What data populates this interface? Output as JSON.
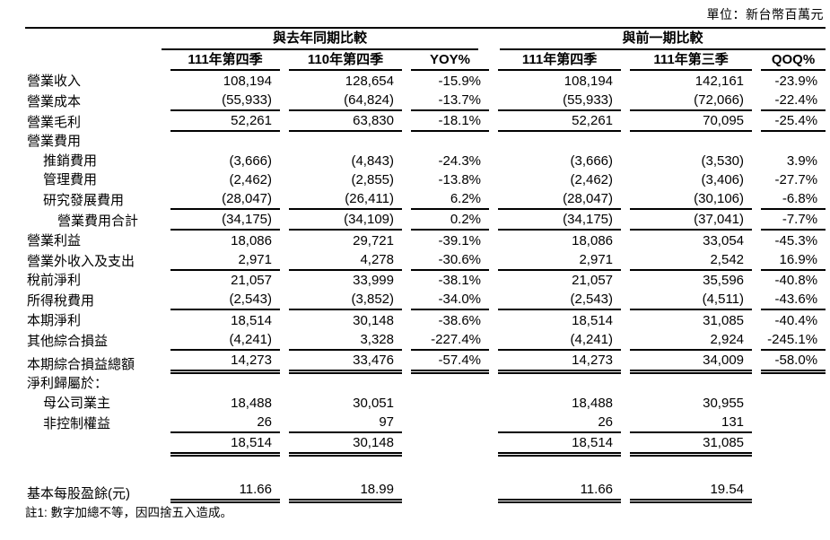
{
  "unit_label": "單位：新台幣百萬元",
  "table": {
    "groups": [
      {
        "label": "與去年同期比較"
      },
      {
        "label": "與前一期比較"
      }
    ],
    "columns": [
      "111年第四季",
      "110年第四季",
      "YOY%",
      "111年第四季",
      "111年第三季",
      "QOQ%"
    ],
    "rows": [
      {
        "label": "營業收入",
        "indent": 0,
        "rule": "none",
        "values": [
          "108,194",
          "128,654",
          "-15.9%",
          "108,194",
          "142,161",
          "-23.9%"
        ]
      },
      {
        "label": "營業成本",
        "indent": 0,
        "rule": "single",
        "values": [
          "(55,933)",
          "(64,824)",
          "-13.7%",
          "(55,933)",
          "(72,066)",
          "-22.4%"
        ]
      },
      {
        "label": "營業毛利",
        "indent": 0,
        "rule": "single",
        "values": [
          "52,261",
          "63,830",
          "-18.1%",
          "52,261",
          "70,095",
          "-25.4%"
        ]
      },
      {
        "label": "營業費用",
        "indent": 0,
        "rule": "none",
        "values": [
          "",
          "",
          "",
          "",
          "",
          ""
        ]
      },
      {
        "label": "推銷費用",
        "indent": 1,
        "rule": "none",
        "values": [
          "(3,666)",
          "(4,843)",
          "-24.3%",
          "(3,666)",
          "(3,530)",
          "3.9%"
        ]
      },
      {
        "label": "管理費用",
        "indent": 1,
        "rule": "none",
        "values": [
          "(2,462)",
          "(2,855)",
          "-13.8%",
          "(2,462)",
          "(3,406)",
          "-27.7%"
        ]
      },
      {
        "label": "研究發展費用",
        "indent": 1,
        "rule": "single",
        "values": [
          "(28,047)",
          "(26,411)",
          "6.2%",
          "(28,047)",
          "(30,106)",
          "-6.8%"
        ]
      },
      {
        "label": "營業費用合計",
        "indent": 2,
        "rule": "single",
        "values": [
          "(34,175)",
          "(34,109)",
          "0.2%",
          "(34,175)",
          "(37,041)",
          "-7.7%"
        ]
      },
      {
        "label": "營業利益",
        "indent": 0,
        "rule": "none",
        "values": [
          "18,086",
          "29,721",
          "-39.1%",
          "18,086",
          "33,054",
          "-45.3%"
        ]
      },
      {
        "label": "營業外收入及支出",
        "indent": 0,
        "rule": "single",
        "values": [
          "2,971",
          "4,278",
          "-30.6%",
          "2,971",
          "2,542",
          "16.9%"
        ]
      },
      {
        "label": "稅前淨利",
        "indent": 0,
        "rule": "none",
        "values": [
          "21,057",
          "33,999",
          "-38.1%",
          "21,057",
          "35,596",
          "-40.8%"
        ]
      },
      {
        "label": "所得稅費用",
        "indent": 0,
        "rule": "single",
        "values": [
          "(2,543)",
          "(3,852)",
          "-34.0%",
          "(2,543)",
          "(4,511)",
          "-43.6%"
        ]
      },
      {
        "label": "本期淨利",
        "indent": 0,
        "rule": "none",
        "values": [
          "18,514",
          "30,148",
          "-38.6%",
          "18,514",
          "31,085",
          "-40.4%"
        ]
      },
      {
        "label": "其他綜合損益",
        "indent": 0,
        "rule": "single",
        "values": [
          "(4,241)",
          "3,328",
          "-227.4%",
          "(4,241)",
          "2,924",
          "-245.1%"
        ]
      },
      {
        "label": "本期綜合損益總額",
        "indent": 0,
        "rule": "double",
        "values": [
          "14,273",
          "33,476",
          "-57.4%",
          "14,273",
          "34,009",
          "-58.0%"
        ]
      },
      {
        "label": "淨利歸屬於：",
        "indent": 0,
        "rule": "none",
        "values": [
          "",
          "",
          "",
          "",
          "",
          ""
        ]
      },
      {
        "label": "母公司業主",
        "indent": 1,
        "rule": "none",
        "values": [
          "18,488",
          "30,051",
          "",
          "18,488",
          "30,955",
          ""
        ]
      },
      {
        "label": "非控制權益",
        "indent": 1,
        "rule": "single",
        "values": [
          "26",
          "97",
          "",
          "26",
          "131",
          ""
        ]
      },
      {
        "label": "",
        "indent": 0,
        "rule": "double",
        "values": [
          "18,514",
          "30,148",
          "",
          "18,514",
          "31,085",
          ""
        ]
      },
      {
        "label": "",
        "indent": 0,
        "rule": "none",
        "spacer": true,
        "values": [
          "",
          "",
          "",
          "",
          "",
          ""
        ]
      },
      {
        "label": "基本每股盈餘(元)",
        "indent": 0,
        "rule": "double",
        "values": [
          "11.66",
          "18.99",
          "",
          "11.66",
          "19.54",
          ""
        ]
      }
    ]
  },
  "footnote": "註1: 數字加總不等，因四捨五入造成。"
}
